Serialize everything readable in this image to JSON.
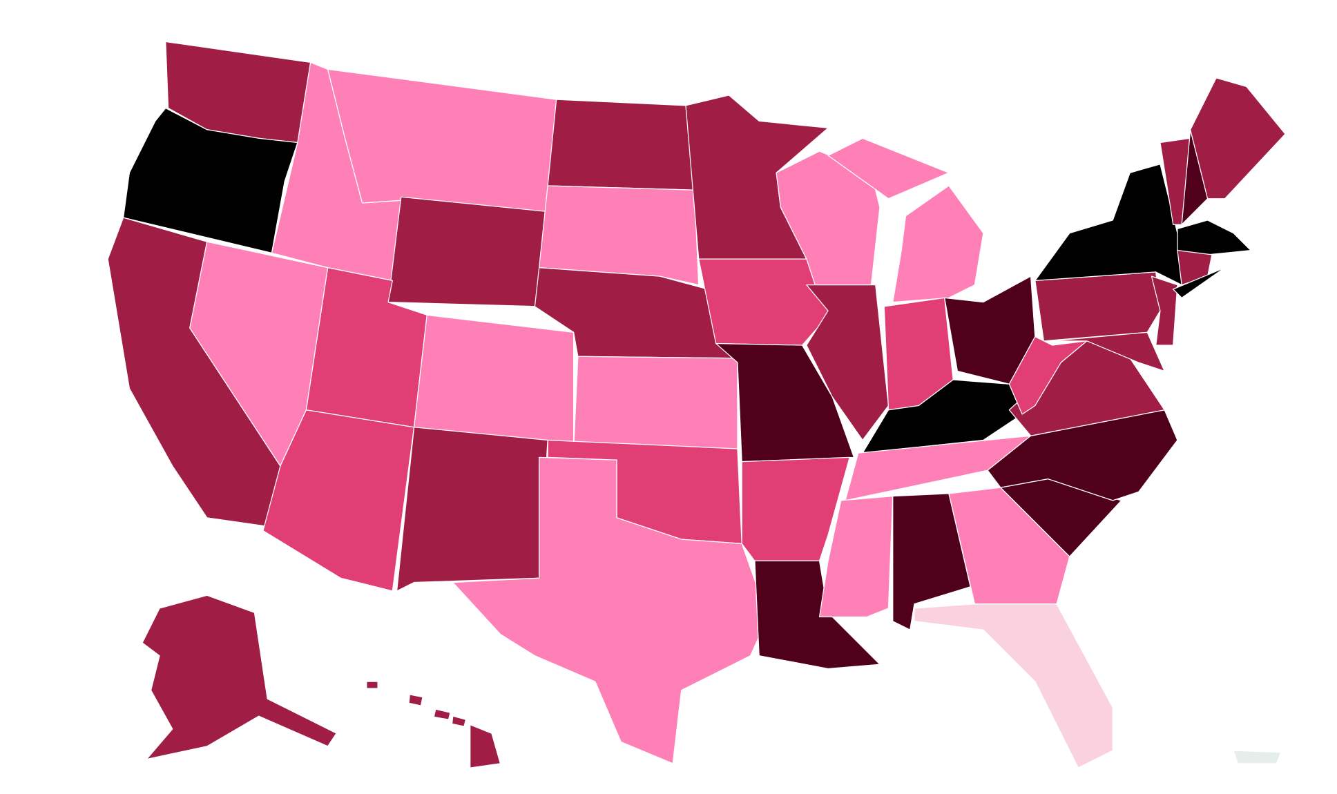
{
  "map": {
    "palette": [
      "#000000",
      "#50001a",
      "#a01d45",
      "#e13e75",
      "#fe80b7",
      "#f9d1df",
      "#e6eeec"
    ]
  }
}
